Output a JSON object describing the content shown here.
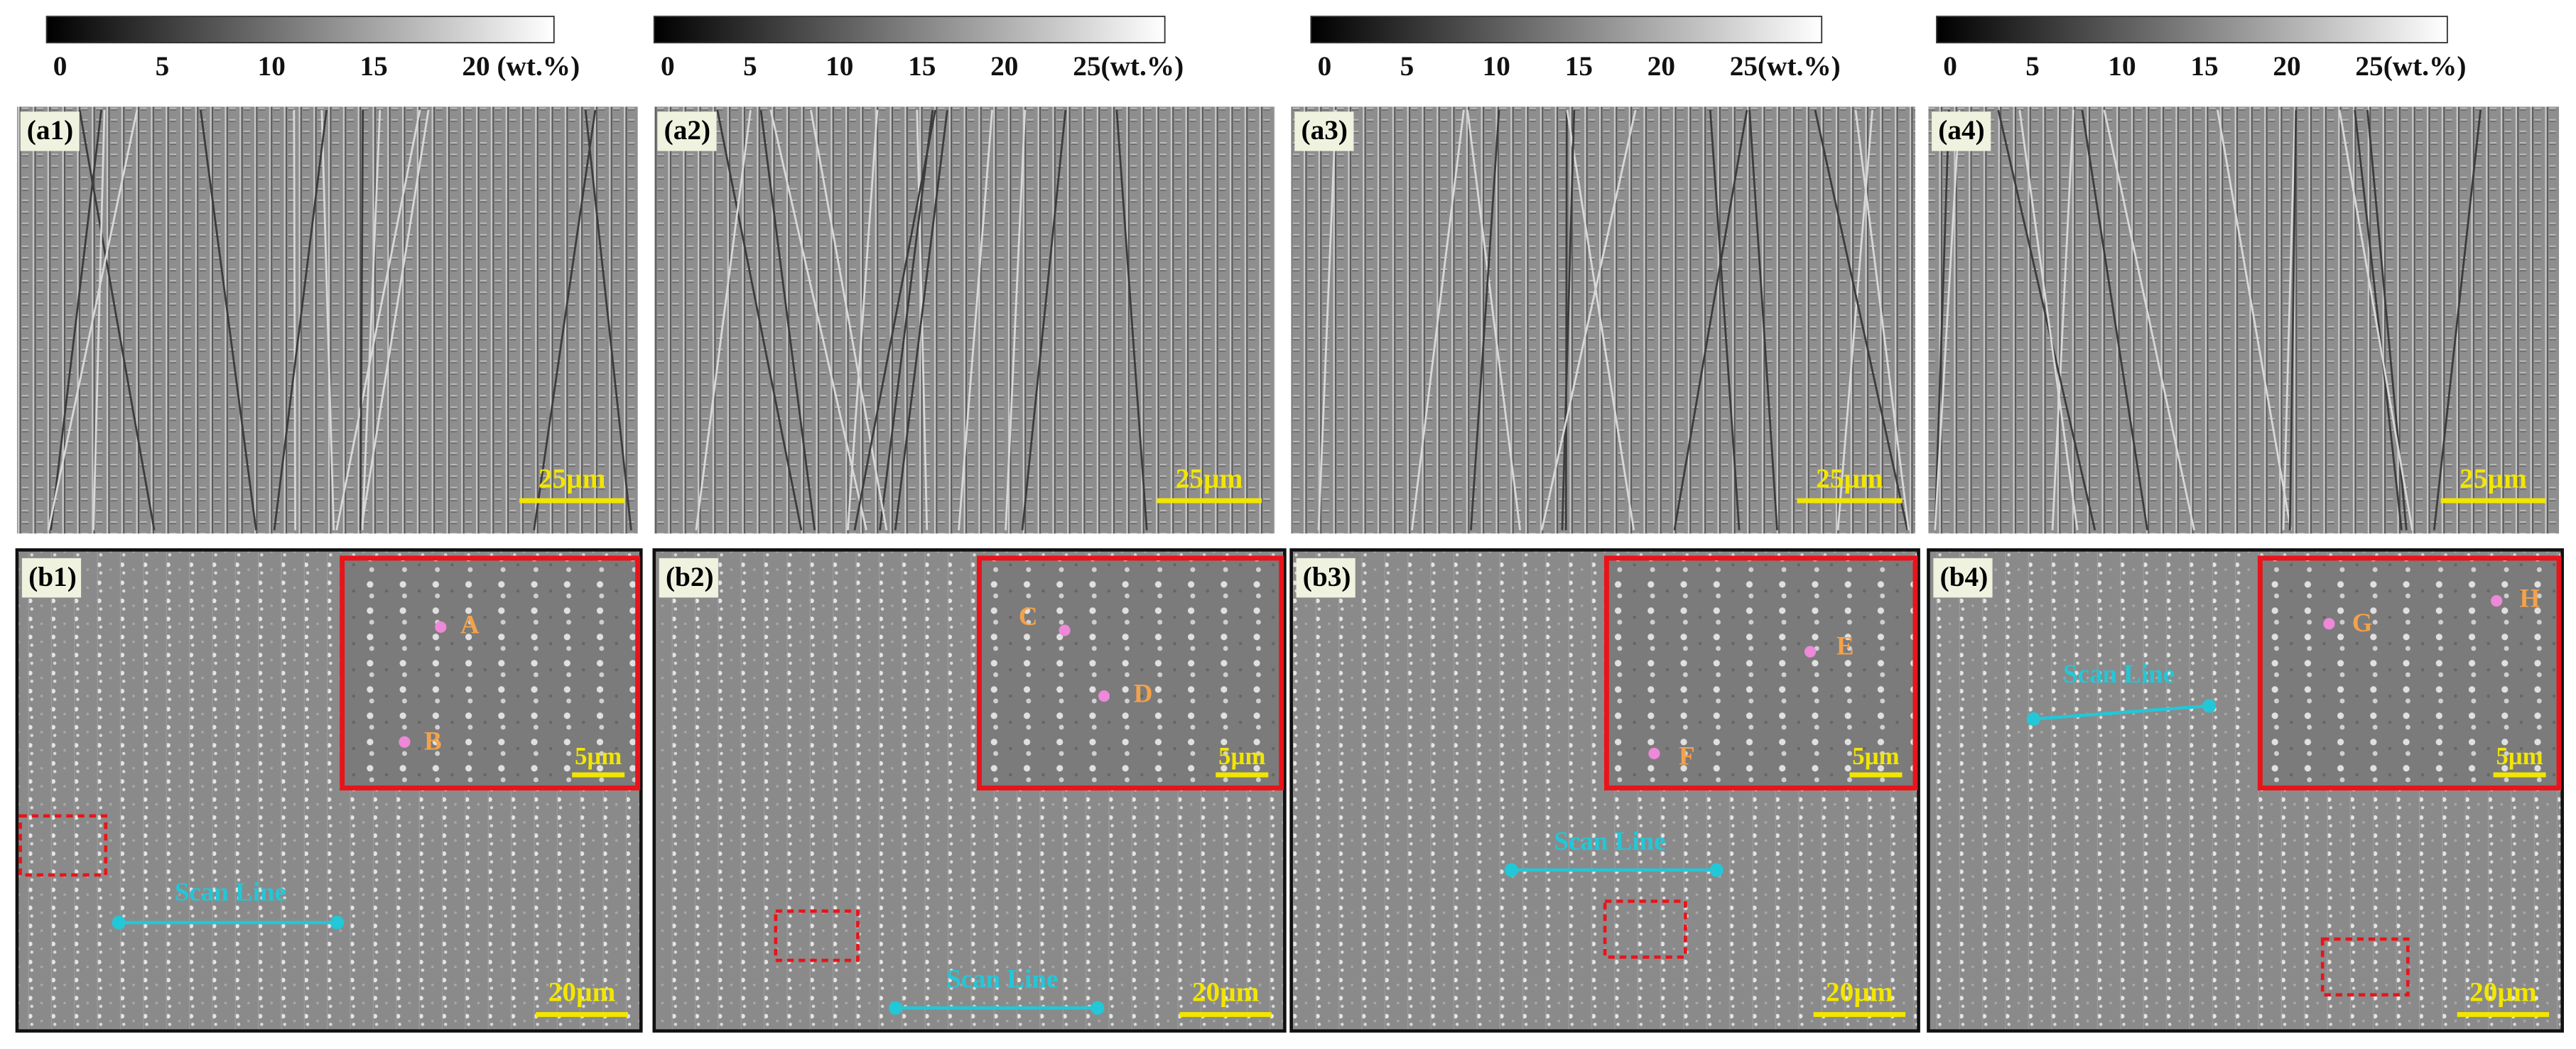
{
  "colorbars": [
    {
      "ticks": [
        "0",
        "5",
        "10",
        "15",
        "20 (wt.%)"
      ]
    },
    {
      "ticks": [
        "0",
        "5",
        "10",
        "15",
        "20",
        "25(wt.%)"
      ]
    },
    {
      "ticks": [
        "0",
        "5",
        "10",
        "15",
        "20",
        "25(wt.%)"
      ]
    },
    {
      "ticks": [
        "0",
        "5",
        "10",
        "15",
        "20",
        "25(wt.%)"
      ]
    }
  ],
  "panels_a": [
    {
      "label": "(a1)",
      "scale_bar": "25µm"
    },
    {
      "label": "(a2)",
      "scale_bar": "25µm"
    },
    {
      "label": "(a3)",
      "scale_bar": "25µm"
    },
    {
      "label": "(a4)",
      "scale_bar": "25µm"
    }
  ],
  "panels_b": [
    {
      "label": "(b1)",
      "scale_bar": "20µm",
      "inset_scale_bar": "5µm",
      "points": [
        "A",
        "B"
      ],
      "scan_line": "Scan Line"
    },
    {
      "label": "(b2)",
      "scale_bar": "20µm",
      "inset_scale_bar": "5µm",
      "points": [
        "C",
        "D"
      ],
      "scan_line": "Scan Line"
    },
    {
      "label": "(b3)",
      "scale_bar": "20µm",
      "inset_scale_bar": "5µm",
      "points": [
        "E",
        "F"
      ],
      "scan_line": "Scan Line"
    },
    {
      "label": "(b4)",
      "scale_bar": "20µm",
      "inset_scale_bar": "5µm",
      "points": [
        "G",
        "H"
      ],
      "scan_line": "Scan Line"
    }
  ]
}
